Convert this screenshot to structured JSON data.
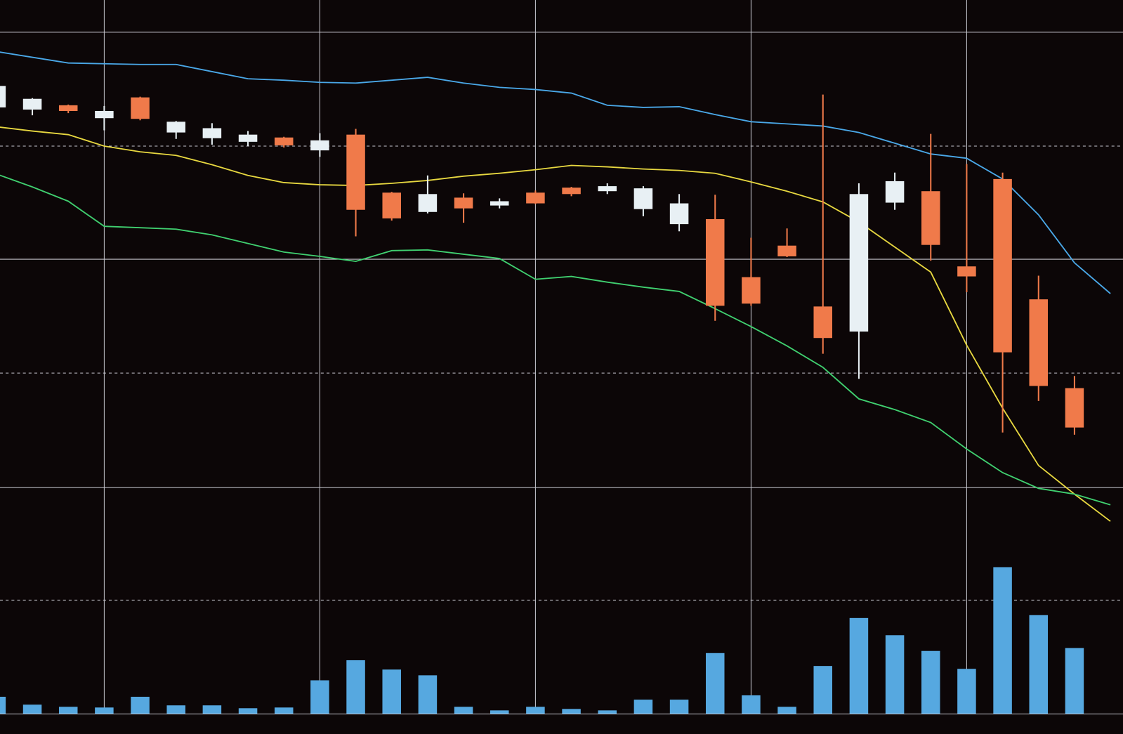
{
  "chart_data": [
    {
      "type": "candlestick",
      "background": "#0c0607",
      "xlim": [
        0.1,
        31.35
      ],
      "ylim": [
        -2.5,
        100
      ],
      "xticks": [
        3,
        9,
        15,
        21,
        27
      ],
      "yticks": [
        95.5,
        79.6,
        63.8,
        47.9,
        31.9,
        16.2
      ],
      "grid_styles": [
        "solid",
        "dashed",
        "solid",
        "dashed",
        "solid",
        "dashed"
      ],
      "grid_color": "#c8c8d0",
      "up_color": "#e8f0f4",
      "down_color": "#f07a4a",
      "categories": [
        null,
        null,
        null,
        null,
        null,
        null,
        null,
        null,
        null,
        null,
        null,
        null,
        null,
        null,
        null,
        null,
        null,
        null,
        null,
        null,
        null,
        null,
        null,
        null,
        null,
        null,
        null,
        null,
        null,
        null,
        null,
        null
      ],
      "open": [
        85.0,
        84.7,
        85.3,
        83.5,
        86.4,
        81.5,
        80.7,
        80.2,
        80.8,
        79.0,
        81.2,
        73.1,
        70.4,
        72.4,
        71.3,
        73.1,
        73.8,
        73.3,
        70.8,
        68.7,
        69.4,
        61.3,
        65.7,
        57.2,
        53.7,
        71.7,
        73.3,
        62.8,
        75.0,
        58.2,
        45.8,
        null
      ],
      "high": [
        88.2,
        86.3,
        85.4,
        85.2,
        86.5,
        83.1,
        82.8,
        81.7,
        80.9,
        81.4,
        82.0,
        73.2,
        75.5,
        73.0,
        72.3,
        73.4,
        73.9,
        74.4,
        74.0,
        72.9,
        72.8,
        66.8,
        68.1,
        86.8,
        74.4,
        75.9,
        81.3,
        77.1,
        75.9,
        61.5,
        47.5,
        null
      ],
      "low": [
        84.8,
        83.9,
        84.2,
        81.8,
        83.2,
        80.6,
        79.8,
        79.6,
        79.4,
        78.1,
        67.0,
        69.2,
        70.2,
        68.9,
        70.9,
        71.5,
        72.6,
        72.9,
        69.8,
        67.7,
        55.2,
        57.3,
        64.1,
        50.6,
        47.1,
        70.7,
        63.6,
        59.2,
        39.6,
        44.0,
        39.3,
        null
      ],
      "close": [
        88.0,
        86.2,
        84.5,
        84.5,
        83.4,
        83.0,
        82.1,
        81.2,
        79.7,
        80.4,
        70.7,
        69.5,
        72.9,
        70.9,
        71.9,
        71.6,
        72.9,
        74.0,
        73.7,
        71.6,
        57.3,
        57.6,
        64.2,
        52.8,
        72.9,
        74.7,
        65.8,
        61.4,
        50.8,
        46.1,
        40.3,
        null
      ],
      "series": [
        {
          "color": "#4aa8e8",
          "values": [
            92.8,
            92.0,
            91.2,
            91.1,
            91.0,
            91.0,
            90.0,
            89.0,
            88.8,
            88.5,
            88.4,
            88.8,
            89.2,
            88.4,
            87.8,
            87.5,
            87.0,
            85.3,
            85.0,
            85.1,
            84.0,
            83.0,
            82.7,
            82.4,
            81.5,
            80.0,
            78.5,
            77.9,
            75.0,
            70.0,
            63.3,
            59.0
          ]
        },
        {
          "color": "#e8d840",
          "values": [
            82.3,
            81.7,
            81.2,
            79.6,
            78.8,
            78.3,
            77.0,
            75.5,
            74.5,
            74.2,
            74.1,
            74.4,
            74.8,
            75.4,
            75.8,
            76.3,
            76.9,
            76.7,
            76.4,
            76.2,
            75.8,
            74.6,
            73.3,
            71.8,
            69.0,
            65.5,
            62.0,
            51.8,
            43.0,
            35.0,
            31.0,
            27.2
          ]
        },
        {
          "color": "#40d070",
          "values": [
            75.7,
            73.9,
            71.9,
            68.4,
            68.2,
            68.0,
            67.2,
            66.0,
            64.8,
            64.2,
            63.5,
            65.0,
            65.1,
            64.5,
            63.9,
            61.0,
            61.4,
            60.6,
            59.9,
            59.3,
            56.9,
            54.4,
            51.7,
            48.7,
            44.3,
            42.8,
            41.0,
            37.3,
            34.0,
            31.8,
            31.0,
            29.5
          ]
        }
      ]
    },
    {
      "type": "bar",
      "color": "#56a8e0",
      "ylim": [
        0,
        99.7
      ],
      "values": [
        2.4,
        1.3,
        1.0,
        0.9,
        2.4,
        1.2,
        1.2,
        0.8,
        0.9,
        4.7,
        7.5,
        6.2,
        5.4,
        1.0,
        0.5,
        1.0,
        0.7,
        0.5,
        2.0,
        2.0,
        8.5,
        2.6,
        1.0,
        6.7,
        13.4,
        11.0,
        8.8,
        6.3,
        20.5,
        13.8,
        9.2,
        null
      ]
    }
  ]
}
